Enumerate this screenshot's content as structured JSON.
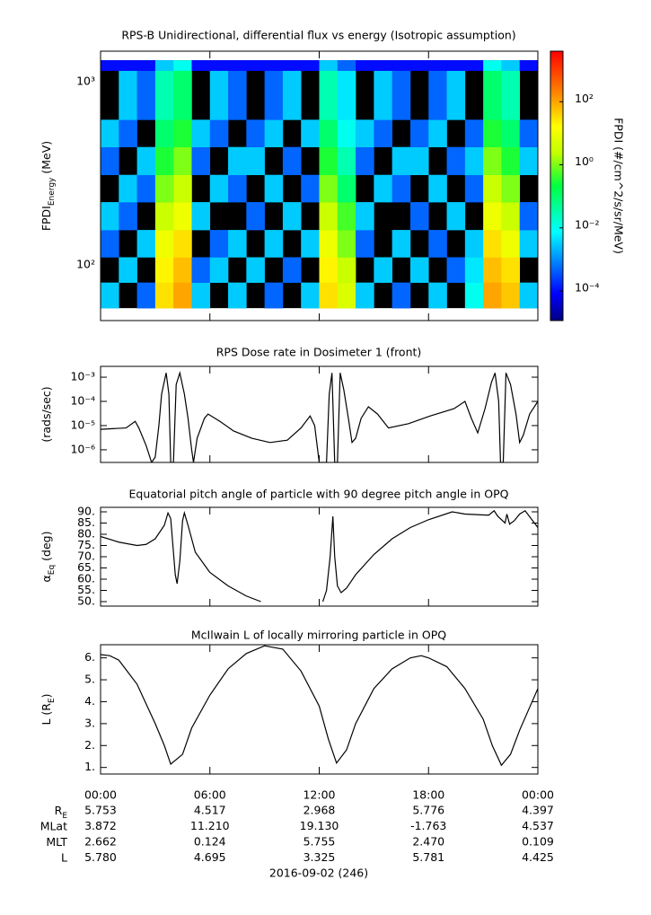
{
  "chart_data": [
    {
      "type": "heatmap",
      "title": "RPS-B  Unidirectional, differential flux vs energy (Isotropic assumption)",
      "ylabel": {
        "text": "FPDI",
        "sub": "Energy",
        "after": " (MeV)"
      },
      "xlim": [
        0,
        24
      ],
      "xticks": [
        0,
        6,
        12,
        18,
        24
      ],
      "ylim": [
        49.6,
        1468
      ],
      "log_y": true,
      "yticks": [
        {
          "value": 100,
          "label": "10²"
        },
        {
          "value": 1000,
          "label": "10³"
        }
      ],
      "x_bins": [
        0,
        1,
        2,
        3,
        4,
        5,
        6,
        7,
        8,
        9,
        10,
        11,
        12,
        13,
        14,
        15,
        16,
        17,
        18,
        19,
        20,
        21,
        22,
        23,
        24
      ],
      "y_bins": [
        58,
        80,
        110,
        155,
        220,
        310,
        440,
        620,
        1150,
        1310
      ],
      "z": [
        [
          0.003,
          null,
          0.0005,
          30,
          100,
          0.003,
          null,
          0.003,
          null,
          0.0005,
          null,
          0.003,
          30,
          5,
          0.003,
          null,
          0.0005,
          null,
          0.003,
          null,
          0.01,
          100,
          50,
          0.003
        ],
        [
          null,
          0.003,
          null,
          20,
          60,
          0.0005,
          0.003,
          null,
          0.003,
          null,
          0.0005,
          null,
          20,
          3,
          null,
          0.003,
          null,
          0.003,
          null,
          0.0005,
          0.005,
          60,
          30,
          null
        ],
        [
          0.0005,
          null,
          0.003,
          10,
          30,
          null,
          0.0005,
          0.003,
          null,
          0.003,
          null,
          0.003,
          10,
          1,
          0.0005,
          null,
          0.003,
          null,
          0.0005,
          null,
          0.003,
          30,
          10,
          0.003
        ],
        [
          0.003,
          0.0005,
          null,
          3,
          10,
          0.003,
          null,
          null,
          0.0005,
          null,
          0.003,
          null,
          3,
          0.5,
          0.003,
          null,
          null,
          0.0005,
          null,
          0.003,
          null,
          10,
          3,
          0.0005
        ],
        [
          null,
          0.003,
          0.0005,
          1,
          3,
          null,
          0.003,
          0.0005,
          null,
          0.003,
          null,
          0.0005,
          1,
          0.1,
          null,
          0.003,
          0.0005,
          null,
          0.003,
          null,
          0.0005,
          3,
          1,
          null
        ],
        [
          0.0005,
          null,
          0.003,
          0.3,
          1,
          0.0005,
          null,
          0.003,
          0.003,
          null,
          0.0005,
          null,
          0.3,
          0.03,
          0.0005,
          null,
          0.003,
          0.003,
          null,
          0.0005,
          0.003,
          1,
          0.3,
          0.003
        ],
        [
          0.003,
          0.0005,
          null,
          0.1,
          0.3,
          0.003,
          0.0005,
          null,
          0.0005,
          0.003,
          null,
          0.003,
          0.1,
          0.01,
          0.003,
          0.0005,
          null,
          0.0005,
          0.003,
          null,
          0.0005,
          0.3,
          0.1,
          0.0005
        ],
        [
          null,
          0.003,
          0.0005,
          0.03,
          0.1,
          null,
          0.003,
          0.0005,
          null,
          0.0005,
          0.003,
          null,
          0.03,
          0.005,
          null,
          0.003,
          0.0005,
          null,
          0.0005,
          0.003,
          null,
          0.1,
          0.03,
          null
        ],
        [
          0.0001,
          0.0001,
          0.0001,
          0.003,
          0.01,
          0.0001,
          0.0001,
          0.0001,
          0.0001,
          0.0001,
          0.0001,
          0.0001,
          0.003,
          0.0005,
          0.0001,
          0.0001,
          0.0001,
          0.0001,
          0.0001,
          0.0001,
          0.0001,
          0.01,
          0.003,
          0.0001
        ]
      ],
      "colormap": "jet",
      "zlim": [
        1.15e-05,
        4000
      ],
      "log_z": true,
      "zticks": [
        {
          "value": 0.0001,
          "label": "10⁻⁴"
        },
        {
          "value": 0.01,
          "label": "10⁻²"
        },
        {
          "value": 1,
          "label": "10⁰"
        },
        {
          "value": 100,
          "label": "10²"
        }
      ],
      "zlabel": "FPDI (#/cm^2/s/sr/MeV)"
    },
    {
      "type": "line",
      "title": "RPS  Dose rate in Dosimeter 1 (front)",
      "ylabel": {
        "text": "(rads/sec)"
      },
      "xlim": [
        0,
        24
      ],
      "xticks": [
        0,
        6,
        12,
        18,
        24
      ],
      "ylim": [
        3e-07,
        0.0028
      ],
      "log_y": true,
      "yticks": [
        {
          "value": 1e-06,
          "label": "10⁻⁶"
        },
        {
          "value": 1e-05,
          "label": "10⁻⁵"
        },
        {
          "value": 0.0001,
          "label": "10⁻⁴"
        },
        {
          "value": 0.001,
          "label": "10⁻³"
        }
      ],
      "color": "#000000",
      "x": [
        0,
        1.4,
        1.9,
        2.1,
        2.5,
        2.8,
        3.0,
        3.2,
        3.35,
        3.6,
        3.75,
        3.85,
        4.0,
        4.15,
        4.35,
        4.6,
        4.8,
        5.0,
        5.1,
        5.3,
        5.7,
        5.9,
        6.55,
        7.3,
        8.3,
        9.3,
        10.25,
        11.0,
        11.5,
        11.75,
        12.0,
        12.4,
        12.55,
        12.7,
        12.85,
        13.0,
        13.15,
        13.35,
        13.6,
        13.8,
        14.0,
        14.3,
        14.7,
        15.2,
        15.8,
        16.9,
        18.1,
        19.4,
        20.0,
        20.35,
        20.7,
        21.1,
        21.45,
        21.65,
        21.85,
        21.95,
        22.1,
        22.25,
        22.5,
        22.8,
        23.0,
        23.2,
        23.55,
        24
      ],
      "values": [
        7e-06,
        8e-06,
        1.5e-05,
        8e-06,
        1.5e-06,
        3e-07,
        5e-07,
        1e-05,
        0.0002,
        0.0015,
        0.0002,
        3e-07,
        3e-07,
        0.0005,
        0.0015,
        0.0002,
        2e-05,
        1e-06,
        3e-07,
        3e-06,
        2e-05,
        3e-05,
        1.5e-05,
        6e-06,
        3e-06,
        2e-06,
        2.5e-06,
        8e-06,
        2.5e-05,
        1e-05,
        3e-07,
        3e-07,
        0.0002,
        0.0015,
        3e-07,
        3e-07,
        0.0015,
        0.0003,
        2e-05,
        2e-06,
        3e-06,
        2e-05,
        6e-05,
        3e-05,
        8e-06,
        1.2e-05,
        2.5e-05,
        5e-05,
        0.0001,
        2e-05,
        5e-06,
        5e-05,
        0.0006,
        0.0015,
        0.0001,
        3e-07,
        3e-07,
        0.0015,
        0.0005,
        3e-05,
        2e-06,
        4e-06,
        3e-05,
        0.0001
      ]
    },
    {
      "type": "line",
      "title": "Equatorial pitch angle of particle with 90 degree pitch angle in OPQ",
      "ylabel": {
        "text": "α",
        "sub": "Eq",
        "after": " (deg)"
      },
      "xlim": [
        0,
        24
      ],
      "xticks": [
        0,
        6,
        12,
        18,
        24
      ],
      "ylim": [
        48,
        92
      ],
      "yticks": [
        {
          "value": 50,
          "label": "50."
        },
        {
          "value": 55,
          "label": "55."
        },
        {
          "value": 60,
          "label": "60."
        },
        {
          "value": 65,
          "label": "65."
        },
        {
          "value": 70,
          "label": "70."
        },
        {
          "value": 75,
          "label": "75."
        },
        {
          "value": 80,
          "label": "80."
        },
        {
          "value": 85,
          "label": "85."
        },
        {
          "value": 90,
          "label": "90."
        }
      ],
      "color": "#000000",
      "x": [
        0,
        1,
        2,
        2.5,
        3,
        3.5,
        3.7,
        3.85,
        4.0,
        4.1,
        4.2,
        4.35,
        4.5,
        4.6,
        4.8,
        5.2,
        6,
        7,
        8,
        8.8,
        10,
        12.2,
        12.4,
        12.6,
        12.75,
        12.85,
        13.0,
        13.2,
        13.5,
        14,
        15,
        16,
        17,
        18,
        19.3,
        20,
        21.3,
        21.6,
        21.8,
        22.2,
        22.3,
        22.45,
        22.7,
        23,
        23.3,
        24
      ],
      "values": [
        79,
        76.5,
        75,
        75.5,
        78,
        84,
        89.5,
        87,
        72,
        62,
        58,
        68,
        86,
        89.5,
        84,
        72,
        63,
        57,
        52.5,
        50,
        null,
        50,
        55,
        70,
        88,
        70,
        57,
        54,
        56,
        62,
        71,
        78,
        83,
        86.5,
        90,
        89,
        88.5,
        90.5,
        88,
        85,
        89,
        84.5,
        86,
        89,
        90.5,
        83
      ]
    },
    {
      "type": "line",
      "title": "McIlwain L of locally mirroring particle in OPQ",
      "ylabel": {
        "text": "L (R",
        "sub": "E",
        "after": ")"
      },
      "xlim": [
        0,
        24
      ],
      "ylim": [
        0.7,
        6.6
      ],
      "xticks": [
        {
          "value": 0,
          "label": "00:00"
        },
        {
          "value": 6,
          "label": "06:00"
        },
        {
          "value": 12,
          "label": "12:00"
        },
        {
          "value": 18,
          "label": "18:00"
        },
        {
          "value": 24,
          "label": "00:00"
        }
      ],
      "yticks": [
        {
          "value": 1,
          "label": "1."
        },
        {
          "value": 2,
          "label": "2."
        },
        {
          "value": 3,
          "label": "3."
        },
        {
          "value": 4,
          "label": "4."
        },
        {
          "value": 5,
          "label": "5."
        },
        {
          "value": 6,
          "label": "6."
        }
      ],
      "color": "#000000",
      "x": [
        0,
        0.5,
        1,
        2,
        3,
        3.5,
        3.85,
        4.5,
        5,
        6,
        7,
        8,
        9,
        10,
        11,
        12,
        12.5,
        12.95,
        13.5,
        14,
        15,
        16,
        17,
        17.6,
        18,
        19,
        20,
        21,
        21.5,
        22,
        22.5,
        23,
        24
      ],
      "values": [
        6.15,
        6.1,
        5.9,
        4.8,
        3.0,
        2.0,
        1.15,
        1.6,
        2.8,
        4.3,
        5.5,
        6.2,
        6.55,
        6.4,
        5.4,
        3.8,
        2.3,
        1.2,
        1.8,
        3.0,
        4.6,
        5.5,
        6.0,
        6.1,
        6.0,
        5.6,
        4.6,
        3.2,
        2.0,
        1.1,
        1.6,
        2.7,
        4.6
      ]
    }
  ],
  "ephemeris": {
    "rows": [
      {
        "label": "R",
        "label_sub": "E",
        "values": [
          "5.753",
          "4.517",
          "2.968",
          "5.776",
          "4.397"
        ]
      },
      {
        "label": "MLat",
        "values": [
          "3.872",
          "11.210",
          "19.130",
          "-1.763",
          "4.537"
        ]
      },
      {
        "label": "MLT",
        "values": [
          "2.662",
          "0.124",
          "5.755",
          "2.470",
          "0.109"
        ]
      },
      {
        "label": "L",
        "values": [
          "5.780",
          "4.695",
          "3.325",
          "5.781",
          "4.425"
        ]
      }
    ],
    "date": "2016-09-02 (246)"
  }
}
